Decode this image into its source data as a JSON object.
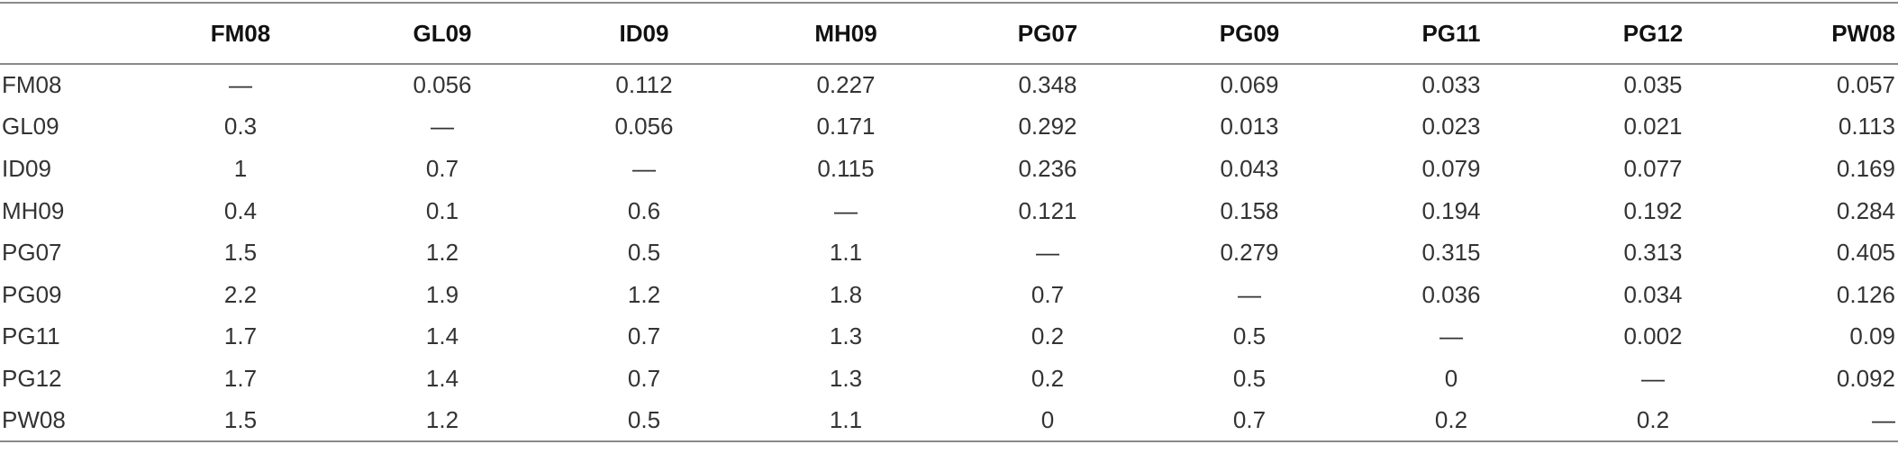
{
  "table": {
    "columns": [
      "FM08",
      "GL09",
      "ID09",
      "MH09",
      "PG07",
      "PG09",
      "PG11",
      "PG12",
      "PW08"
    ],
    "rows": [
      {
        "label": "FM08",
        "cells": [
          "—",
          "0.056",
          "0.112",
          "0.227",
          "0.348",
          "0.069",
          "0.033",
          "0.035",
          "0.057"
        ]
      },
      {
        "label": "GL09",
        "cells": [
          "0.3",
          "—",
          "0.056",
          "0.171",
          "0.292",
          "0.013",
          "0.023",
          "0.021",
          "0.113"
        ]
      },
      {
        "label": "ID09",
        "cells": [
          "1",
          "0.7",
          "—",
          "0.115",
          "0.236",
          "0.043",
          "0.079",
          "0.077",
          "0.169"
        ]
      },
      {
        "label": "MH09",
        "cells": [
          "0.4",
          "0.1",
          "0.6",
          "—",
          "0.121",
          "0.158",
          "0.194",
          "0.192",
          "0.284"
        ]
      },
      {
        "label": "PG07",
        "cells": [
          "1.5",
          "1.2",
          "0.5",
          "1.1",
          "—",
          "0.279",
          "0.315",
          "0.313",
          "0.405"
        ]
      },
      {
        "label": "PG09",
        "cells": [
          "2.2",
          "1.9",
          "1.2",
          "1.8",
          "0.7",
          "—",
          "0.036",
          "0.034",
          "0.126"
        ]
      },
      {
        "label": "PG11",
        "cells": [
          "1.7",
          "1.4",
          "0.7",
          "1.3",
          "0.2",
          "0.5",
          "—",
          "0.002",
          "0.09"
        ]
      },
      {
        "label": "PG12",
        "cells": [
          "1.7",
          "1.4",
          "0.7",
          "1.3",
          "0.2",
          "0.5",
          "0",
          "—",
          "0.092"
        ]
      },
      {
        "label": "PW08",
        "cells": [
          "1.5",
          "1.2",
          "0.5",
          "1.1",
          "0",
          "0.7",
          "0.2",
          "0.2",
          "—"
        ]
      }
    ]
  }
}
